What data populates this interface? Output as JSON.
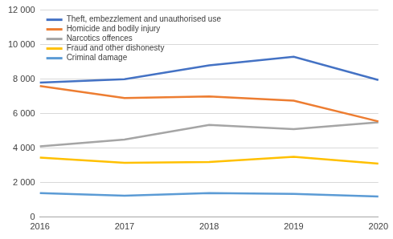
{
  "chart_data": {
    "type": "line",
    "categories": [
      "2016",
      "2017",
      "2018",
      "2019",
      "2020"
    ],
    "series": [
      {
        "name": "Theft, embezzlement and unauthorised use",
        "color": "#4472c4",
        "values": [
          7800,
          8000,
          8800,
          9300,
          7950
        ]
      },
      {
        "name": "Homicide and bodily injury",
        "color": "#ed7d31",
        "values": [
          7600,
          6900,
          7000,
          6750,
          5550
        ]
      },
      {
        "name": "Narcotics offences",
        "color": "#a5a5a5",
        "values": [
          4100,
          4500,
          5350,
          5100,
          5500
        ]
      },
      {
        "name": "Fraud and other dishonesty",
        "color": "#ffc000",
        "values": [
          3450,
          3150,
          3200,
          3500,
          3100
        ]
      },
      {
        "name": "Criminal damage",
        "color": "#5b9bd5",
        "values": [
          1400,
          1250,
          1400,
          1350,
          1200
        ]
      }
    ],
    "ylim": [
      0,
      12000
    ],
    "yticks": [
      0,
      {
        "value": 2000,
        "label": "2 000"
      },
      {
        "value": 4000,
        "label": "4 000"
      },
      {
        "value": 6000,
        "label": "6 000"
      },
      {
        "value": 8000,
        "label": "8 000"
      },
      {
        "value": 10000,
        "label": "10 000"
      },
      {
        "value": 12000,
        "label": "12 000"
      }
    ],
    "grid": true,
    "legend": "top-left"
  }
}
